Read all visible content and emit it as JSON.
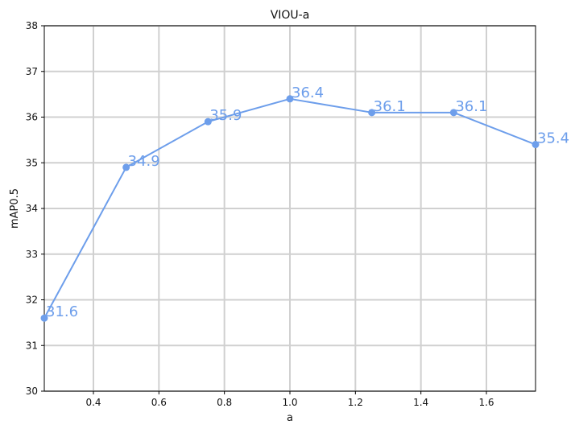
{
  "chart_data": {
    "type": "line",
    "title": "VIOU-a",
    "xlabel": "a",
    "ylabel": "mAP0.5",
    "x": [
      0.25,
      0.5,
      0.75,
      1.0,
      1.25,
      1.5,
      1.75
    ],
    "series": [
      {
        "values": [
          31.6,
          34.9,
          35.9,
          36.4,
          36.1,
          36.1,
          35.4
        ],
        "color": "#6d9eeb",
        "marker": "circle"
      }
    ],
    "data_labels": [
      "31.6",
      "34.9",
      "35.9",
      "36.4",
      "36.1",
      "36.1",
      "35.4"
    ],
    "xlim": [
      0.25,
      1.75
    ],
    "ylim": [
      30,
      38
    ],
    "xticks": [
      0.4,
      0.6,
      0.8,
      1.0,
      1.2,
      1.4,
      1.6
    ],
    "xtick_labels": [
      "0.4",
      "0.6",
      "0.8",
      "1.0",
      "1.2",
      "1.4",
      "1.6"
    ],
    "yticks": [
      30,
      31,
      32,
      33,
      34,
      35,
      36,
      37,
      38
    ],
    "ytick_labels": [
      "30",
      "31",
      "32",
      "33",
      "34",
      "35",
      "36",
      "37",
      "38"
    ],
    "grid": true,
    "legend": "none"
  }
}
